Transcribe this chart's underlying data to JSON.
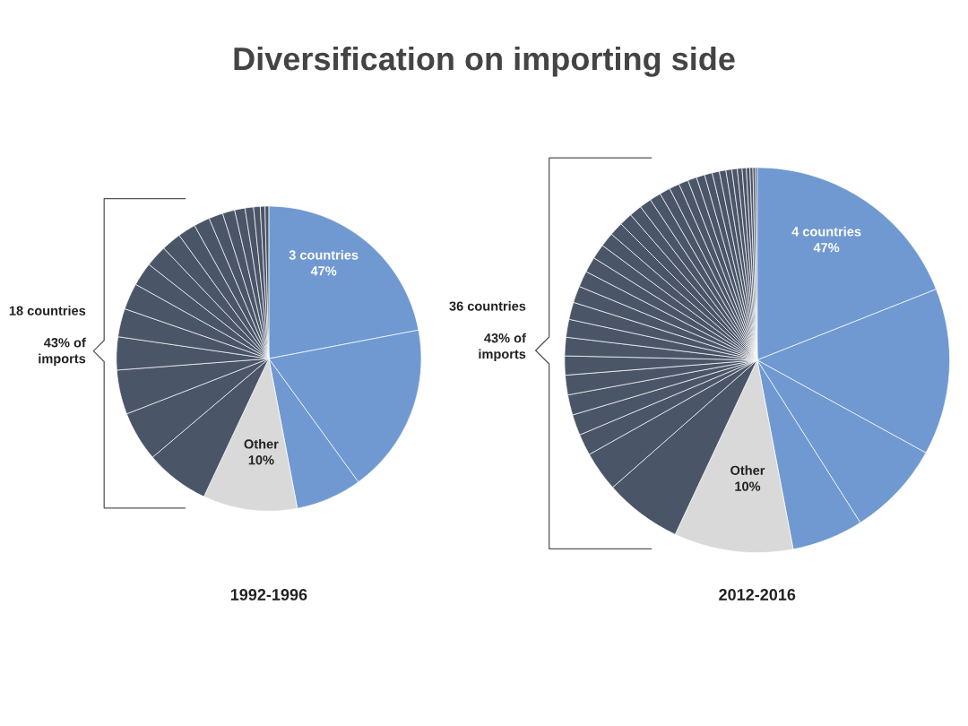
{
  "chart_data": [
    {
      "type": "pie",
      "title": "Diversification on importing side",
      "subtitle": "1992-1996",
      "categories": [
        null,
        null,
        null,
        null,
        null,
        null,
        null,
        null,
        null,
        null,
        null,
        null,
        null,
        null,
        null,
        null,
        null,
        null,
        null,
        null,
        null,
        null
      ],
      "values": [
        22,
        18,
        7,
        10,
        6.8,
        5.3,
        4.7,
        3.5,
        3,
        2.8,
        2.5,
        2.3,
        2.1,
        1.9,
        1.7,
        1.5,
        1.3,
        1.1,
        0.9,
        0.7,
        0.5,
        0.4
      ],
      "colors": [
        "#7099d1",
        "#7099d1",
        "#7099d1",
        "#d9d9d9",
        "#4a5568",
        "#4a5568",
        "#4a5568",
        "#4a5568",
        "#4a5568",
        "#4a5568",
        "#4a5568",
        "#4a5568",
        "#4a5568",
        "#4a5568",
        "#4a5568",
        "#4a5568",
        "#4a5568",
        "#4a5568",
        "#4a5568",
        "#4a5568",
        "#4a5568",
        "#4a5568"
      ],
      "annotations": [
        "3 countries\n47%",
        "18 countries\n\n43% of\nimports",
        "Other\n10%"
      ]
    },
    {
      "type": "pie",
      "subtitle": "2012-2016",
      "categories": [
        null,
        null,
        null,
        null,
        null,
        null,
        null,
        null,
        null,
        null,
        null,
        null,
        null,
        null,
        null,
        null,
        null,
        null,
        null,
        null,
        null,
        null,
        null,
        null,
        null,
        null,
        null,
        null,
        null,
        null,
        null,
        null,
        null,
        null,
        null,
        null,
        null,
        null,
        null,
        null,
        null
      ],
      "values": [
        19,
        14,
        8,
        6,
        10,
        6.5,
        3.35,
        1.8,
        1.75,
        1.7,
        1.65,
        1.6,
        1.55,
        1.5,
        1.45,
        1.4,
        1.35,
        1.3,
        1.25,
        1.2,
        1.15,
        1.1,
        1.05,
        1.0,
        0.95,
        0.9,
        0.85,
        0.8,
        0.75,
        0.7,
        0.65,
        0.6,
        0.55,
        0.5,
        0.45,
        0.4,
        0.35,
        0.3,
        0.25,
        0.2,
        0.15
      ],
      "colors": [
        "#7099d1",
        "#7099d1",
        "#7099d1",
        "#7099d1",
        "#d9d9d9",
        "#4a5568",
        "#4a5568",
        "#4a5568",
        "#4a5568",
        "#4a5568",
        "#4a5568",
        "#4a5568",
        "#4a5568",
        "#4a5568",
        "#4a5568",
        "#4a5568",
        "#4a5568",
        "#4a5568",
        "#4a5568",
        "#4a5568",
        "#4a5568",
        "#4a5568",
        "#4a5568",
        "#4a5568",
        "#4a5568",
        "#4a5568",
        "#4a5568",
        "#4a5568",
        "#4a5568",
        "#4a5568",
        "#4a5568",
        "#4a5568",
        "#4a5568",
        "#4a5568",
        "#4a5568",
        "#4a5568",
        "#4a5568",
        "#4a5568",
        "#4a5568",
        "#4a5568",
        "#4a5568"
      ],
      "annotations": [
        "4 countries\n47%",
        "36 countries\n\n43% of\nimports",
        "Other\n10%"
      ]
    }
  ]
}
